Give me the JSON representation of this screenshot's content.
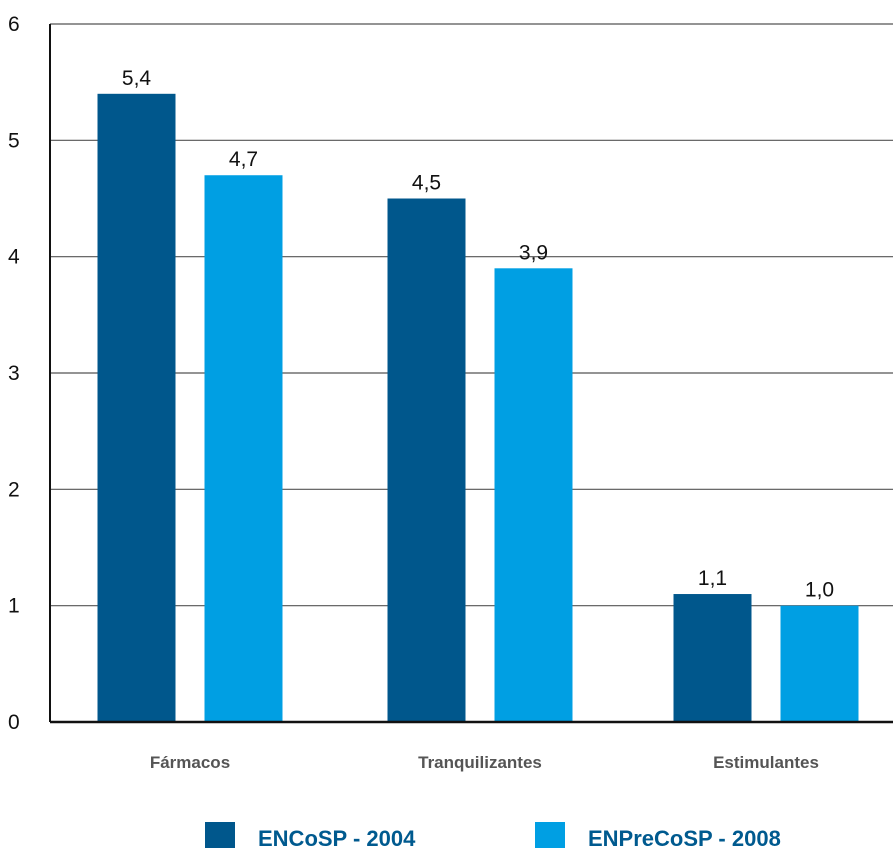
{
  "chart_data": {
    "type": "bar",
    "categories": [
      "Fármacos",
      "Tranquilizantes",
      "Estimulantes"
    ],
    "series": [
      {
        "name": "ENCoSP - 2004",
        "values": [
          5.4,
          4.5,
          1.1
        ],
        "labels": [
          "5,4",
          "4,5",
          "1,1"
        ],
        "color": "#00578c"
      },
      {
        "name": "ENPreCoSP - 2008",
        "values": [
          4.7,
          3.9,
          1.0
        ],
        "labels": [
          "4,7",
          "3,9",
          "1,0"
        ],
        "color": "#009fe3"
      }
    ],
    "ylim": [
      0,
      6
    ],
    "yticks": [
      "0",
      "1",
      "2",
      "3",
      "4",
      "5",
      "6"
    ],
    "grid": true,
    "legend_position": "bottom"
  }
}
